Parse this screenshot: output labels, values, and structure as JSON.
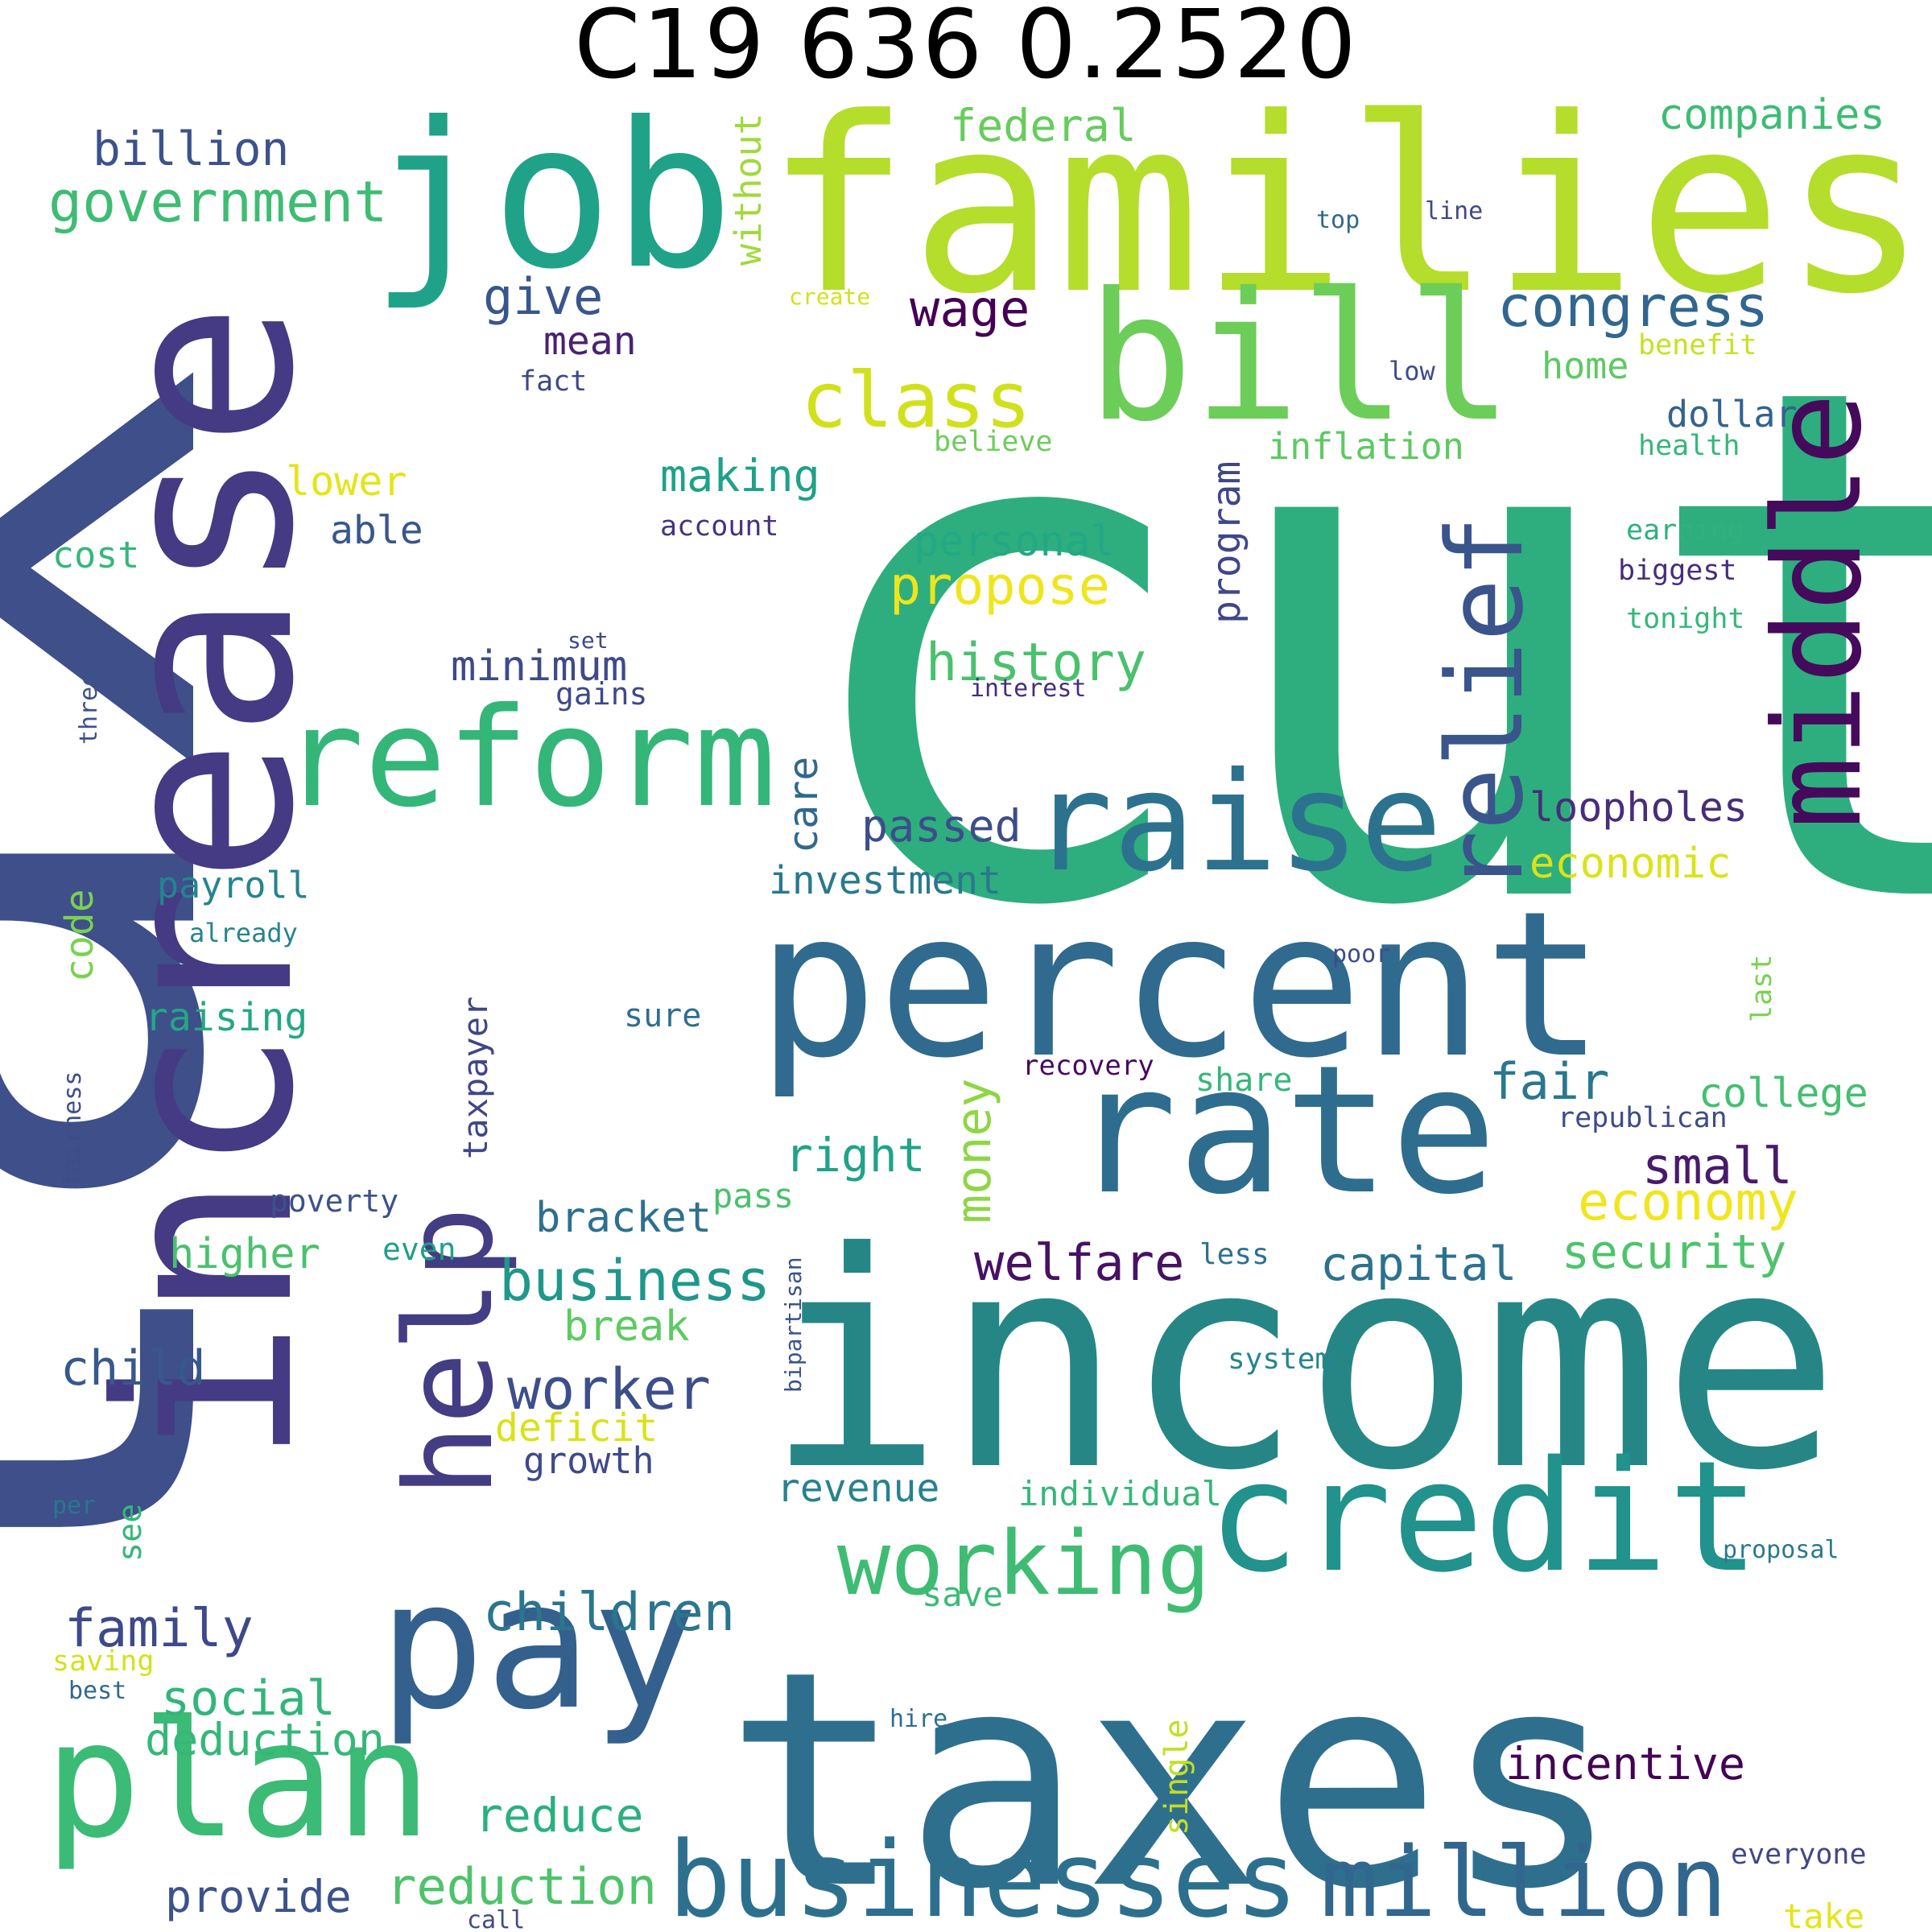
{
  "title": "C19 636 0.2520",
  "words": [
    {
      "text": "tax",
      "color": "#3e4f8a"
    },
    {
      "text": "cut",
      "color": "#2eae7e"
    },
    {
      "text": "income",
      "color": "#268686"
    },
    {
      "text": "taxes",
      "color": "#2f6f8e"
    },
    {
      "text": "families",
      "color": "#b5dd2b"
    },
    {
      "text": "increase",
      "color": "#453a84"
    },
    {
      "text": "job",
      "color": "#20a288"
    },
    {
      "text": "percent",
      "color": "#306a8e"
    },
    {
      "text": "bill",
      "color": "#6dcd59"
    },
    {
      "text": "pay",
      "color": "#34608d"
    },
    {
      "text": "rate",
      "color": "#2e6d8e"
    },
    {
      "text": "credit",
      "color": "#21928c"
    },
    {
      "text": "plan",
      "color": "#3bbb75"
    },
    {
      "text": "raise",
      "color": "#2c728e"
    },
    {
      "text": "reform",
      "color": "#34b679"
    },
    {
      "text": "middle",
      "color": "#450a5c"
    },
    {
      "text": "help",
      "color": "#433d84"
    },
    {
      "text": "relief",
      "color": "#3a548c"
    },
    {
      "text": "businesses",
      "color": "#2d708e"
    },
    {
      "text": "million",
      "color": "#31678e"
    },
    {
      "text": "working",
      "color": "#3fbc73"
    },
    {
      "text": "class",
      "color": "#d0e11c"
    },
    {
      "text": "government",
      "color": "#3fbc73"
    },
    {
      "text": "congress",
      "color": "#31668e"
    },
    {
      "text": "business",
      "color": "#1f978b"
    },
    {
      "text": "worker",
      "color": "#3c4f8a"
    },
    {
      "text": "children",
      "color": "#2b758e"
    },
    {
      "text": "family",
      "color": "#3e4989"
    },
    {
      "text": "history",
      "color": "#4ac16d"
    },
    {
      "text": "propose",
      "color": "#efe51c"
    },
    {
      "text": "economy",
      "color": "#f1e51d"
    },
    {
      "text": "welfare",
      "color": "#471164"
    },
    {
      "text": "small",
      "color": "#481a6c"
    },
    {
      "text": "reduction",
      "color": "#4ec36b"
    },
    {
      "text": "social",
      "color": "#31b57b"
    },
    {
      "text": "fair",
      "color": "#2a778e"
    },
    {
      "text": "money",
      "color": "#8ed645"
    },
    {
      "text": "billion",
      "color": "#3b528b"
    },
    {
      "text": "give",
      "color": "#39568c"
    },
    {
      "text": "wage",
      "color": "#440154"
    },
    {
      "text": "federal",
      "color": "#67cc5c"
    },
    {
      "text": "companies",
      "color": "#3dbc74"
    },
    {
      "text": "security",
      "color": "#4ec36b"
    },
    {
      "text": "capital",
      "color": "#2c728e"
    },
    {
      "text": "incentive",
      "color": "#440154"
    },
    {
      "text": "reduce",
      "color": "#2ab07f"
    },
    {
      "text": "provide",
      "color": "#3b528b"
    },
    {
      "text": "deduction",
      "color": "#35b779"
    },
    {
      "text": "child",
      "color": "#38588c"
    },
    {
      "text": "bracket",
      "color": "#2d708e"
    },
    {
      "text": "right",
      "color": "#20a386"
    },
    {
      "text": "passed",
      "color": "#3e4c8a"
    },
    {
      "text": "making",
      "color": "#1fa188"
    },
    {
      "text": "personal",
      "color": "#22a884"
    },
    {
      "text": "economic",
      "color": "#dae319"
    },
    {
      "text": "loopholes",
      "color": "#472d7b"
    },
    {
      "text": "college",
      "color": "#44bf70"
    },
    {
      "text": "investment",
      "color": "#2a788e"
    },
    {
      "text": "minimum",
      "color": "#3e4a89"
    },
    {
      "text": "higher",
      "color": "#4ac16d"
    },
    {
      "text": "break",
      "color": "#5ec962"
    },
    {
      "text": "deficit",
      "color": "#d8e219"
    },
    {
      "text": "growth",
      "color": "#3e4a89"
    },
    {
      "text": "revenue",
      "color": "#26828e"
    },
    {
      "text": "raising",
      "color": "#22a884"
    },
    {
      "text": "payroll",
      "color": "#25848e"
    },
    {
      "text": "code",
      "color": "#7ad151"
    },
    {
      "text": "cost",
      "color": "#35b779"
    },
    {
      "text": "lower",
      "color": "#e5e419"
    },
    {
      "text": "able",
      "color": "#39568c"
    },
    {
      "text": "mean",
      "color": "#482173"
    },
    {
      "text": "care",
      "color": "#31688e"
    },
    {
      "text": "program",
      "color": "#3f4788"
    },
    {
      "text": "inflation",
      "color": "#5ec962"
    },
    {
      "text": "home",
      "color": "#5ec962"
    },
    {
      "text": "dollar",
      "color": "#33638d"
    },
    {
      "text": "taxpayer",
      "color": "#3f4788"
    },
    {
      "text": "individual",
      "color": "#35b779"
    },
    {
      "text": "without",
      "color": "#a0da39"
    },
    {
      "text": "pass",
      "color": "#4ac16d"
    },
    {
      "text": "see",
      "color": "#35b779"
    },
    {
      "text": "save",
      "color": "#3aba76"
    },
    {
      "text": "share",
      "color": "#35b779"
    },
    {
      "text": "single",
      "color": "#c2df23"
    },
    {
      "text": "take",
      "color": "#e5e419"
    },
    {
      "text": "poverty",
      "color": "#3b528b"
    },
    {
      "text": "sure",
      "color": "#2e6e8e"
    },
    {
      "text": "even",
      "color": "#1fa088"
    },
    {
      "text": "less",
      "color": "#2d718e"
    },
    {
      "text": "system",
      "color": "#24868e"
    },
    {
      "text": "recovery",
      "color": "#460b5e"
    },
    {
      "text": "republican",
      "color": "#3e4c8a"
    },
    {
      "text": "benefit",
      "color": "#c8e020"
    },
    {
      "text": "health",
      "color": "#35b779"
    },
    {
      "text": "earning",
      "color": "#2db27d"
    },
    {
      "text": "biggest",
      "color": "#472d7b"
    },
    {
      "text": "tonight",
      "color": "#35b779"
    },
    {
      "text": "believe",
      "color": "#6ccd5a"
    },
    {
      "text": "account",
      "color": "#463480"
    },
    {
      "text": "fact",
      "color": "#3e4989"
    },
    {
      "text": "set",
      "color": "#3e4989"
    },
    {
      "text": "gains",
      "color": "#3e4989"
    },
    {
      "text": "interest",
      "color": "#472d7b"
    },
    {
      "text": "three",
      "color": "#3b528b"
    },
    {
      "text": "already",
      "color": "#25848e"
    },
    {
      "text": "fairness",
      "color": "#3e4c8a"
    },
    {
      "text": "bipartisan",
      "color": "#3b528b"
    },
    {
      "text": "per",
      "color": "#2a788e"
    },
    {
      "text": "saving",
      "color": "#d2e21b"
    },
    {
      "text": "best",
      "color": "#31688e"
    },
    {
      "text": "hire",
      "color": "#2e6e8e"
    },
    {
      "text": "call",
      "color": "#3e4c8a"
    },
    {
      "text": "proposal",
      "color": "#2a788e"
    },
    {
      "text": "everyone",
      "color": "#3f4788"
    },
    {
      "text": "poor",
      "color": "#3e4c8a"
    },
    {
      "text": "last",
      "color": "#7ad151"
    },
    {
      "text": "top",
      "color": "#31688e"
    },
    {
      "text": "line",
      "color": "#3e4989"
    },
    {
      "text": "low",
      "color": "#3e4c8a"
    },
    {
      "text": "create",
      "color": "#d2e21b"
    }
  ]
}
